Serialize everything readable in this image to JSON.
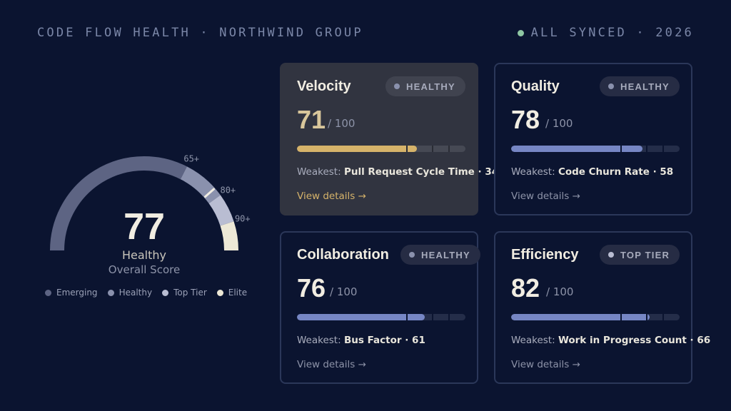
{
  "header": {
    "title": "CODE FLOW HEALTH · NORTHWIND GROUP",
    "status": "ALL SYNCED · 2026"
  },
  "colors": {
    "background": "#0b1430",
    "accent_gold": "#d6b36a",
    "accent_blue": "#7686c4",
    "sync_green": "#8fc7a3",
    "emerging": "#5d6483",
    "healthy": "#8a91ad",
    "top_tier": "#b9bdd2",
    "elite": "#ede8d6"
  },
  "gauge": {
    "score": "77",
    "score_value": 77,
    "label": "Healthy",
    "sublabel": "Overall Score",
    "thresholds": [
      "65+",
      "80+",
      "90+"
    ],
    "legend": [
      {
        "name": "Emerging",
        "color": "#5d6483"
      },
      {
        "name": "Healthy",
        "color": "#8a91ad"
      },
      {
        "name": "Top Tier",
        "color": "#b9bdd2"
      },
      {
        "name": "Elite",
        "color": "#ede8d6"
      }
    ]
  },
  "cards": [
    {
      "title": "Velocity",
      "badge": "HEALTHY",
      "value": "71",
      "out_of": "/ 100",
      "progress": 0.71,
      "weakest_label": "Weakest:",
      "weakest_value": "Pull Request Cycle Time · 34",
      "link": "View details →",
      "fill_color": "#d6b36a",
      "value_color": "#d8c69b",
      "active": true
    },
    {
      "title": "Quality",
      "badge": "HEALTHY",
      "value": "78",
      "out_of": "/ 100",
      "progress": 0.78,
      "weakest_label": "Weakest:",
      "weakest_value": "Code Churn Rate · 58",
      "link": "View details →",
      "fill_color": "#7686c4",
      "value_color": "#f1ede2",
      "active": false
    },
    {
      "title": "Collaboration",
      "badge": "HEALTHY",
      "value": "76",
      "out_of": "/ 100",
      "progress": 0.76,
      "weakest_label": "Weakest:",
      "weakest_value": "Bus Factor · 61",
      "link": "View details →",
      "fill_color": "#7686c4",
      "value_color": "#f1ede2",
      "active": false
    },
    {
      "title": "Efficiency",
      "badge": "TOP TIER",
      "value": "82",
      "out_of": "/ 100",
      "progress": 0.82,
      "weakest_label": "Weakest:",
      "weakest_value": "Work in Progress Count · 66",
      "link": "View details →",
      "fill_color": "#7686c4",
      "value_color": "#f1ede2",
      "active": false
    }
  ]
}
